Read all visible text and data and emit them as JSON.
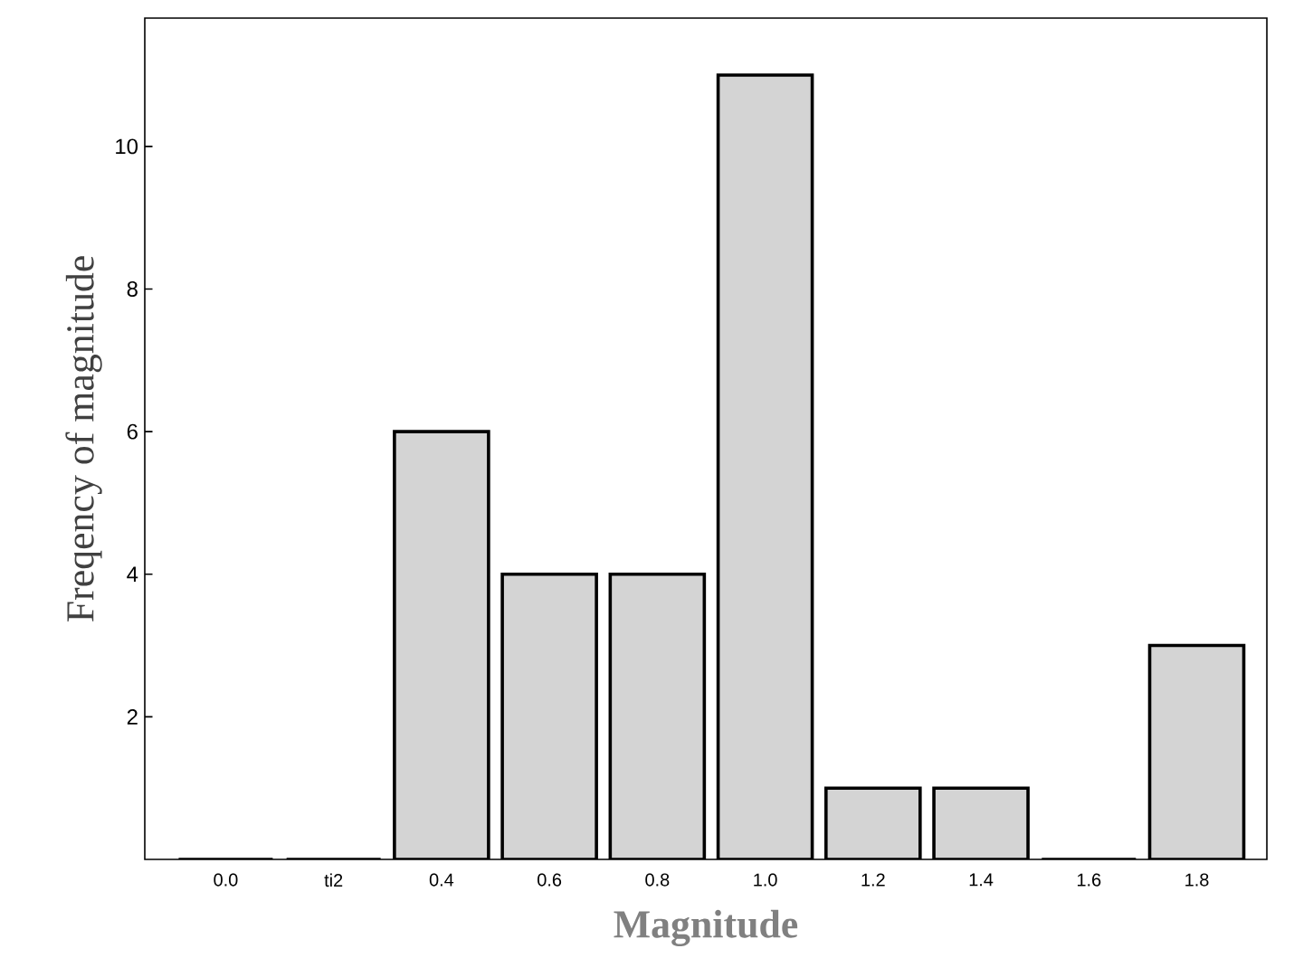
{
  "chart_data": {
    "type": "bar",
    "xlabel": "Magnitude",
    "ylabel": "Freqency of magnitude",
    "categories": [
      "0.0",
      "ti2",
      "0.4",
      "0.6",
      "0.8",
      "1.0",
      "1.2",
      "1.4",
      "1.6",
      "1.8"
    ],
    "values": [
      0,
      0,
      6,
      4,
      4,
      11,
      1,
      1,
      0,
      3
    ],
    "color": "#d4d4d4",
    "ylim": [
      0,
      11.8
    ],
    "yticks": [
      2,
      4,
      6,
      8,
      10
    ]
  }
}
